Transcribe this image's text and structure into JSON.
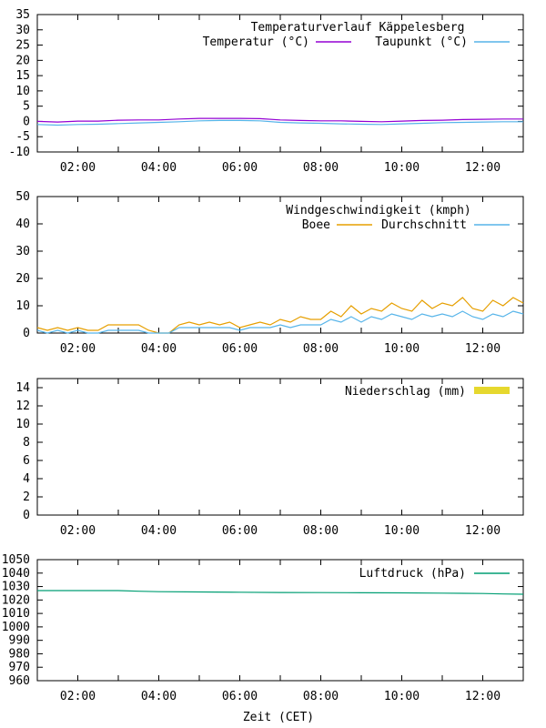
{
  "xlabel": "Zeit (CET)",
  "x_ticks": [
    "02:00",
    "04:00",
    "06:00",
    "08:00",
    "10:00",
    "12:00"
  ],
  "x_tick_hours": [
    2,
    4,
    6,
    8,
    10,
    12
  ],
  "x_range_hours": [
    1,
    13
  ],
  "colors": {
    "temperature": "#9400d3",
    "dewpoint": "#56b4e9",
    "gust": "#e69f00",
    "avg_wind": "#56b4e9",
    "precip": "#e6d82e",
    "pressure": "#009e73",
    "axis": "#000000"
  },
  "chart_data": [
    {
      "type": "line",
      "title": "Temperaturverlauf Käppelesberg",
      "ylim": [
        -10,
        35
      ],
      "yticks": [
        -10,
        -5,
        0,
        5,
        10,
        15,
        20,
        25,
        30,
        35
      ],
      "series": [
        {
          "name": "Temperatur (°C)",
          "color_key": "temperature",
          "x": [
            1,
            1.5,
            2,
            2.5,
            3,
            3.5,
            4,
            4.5,
            5,
            5.5,
            6,
            6.5,
            7,
            7.5,
            8,
            8.5,
            9,
            9.5,
            10,
            10.5,
            11,
            11.5,
            12,
            12.5,
            13
          ],
          "values": [
            0,
            -0.2,
            0.1,
            0.1,
            0.4,
            0.5,
            0.5,
            0.8,
            1.0,
            1.0,
            1.0,
            0.9,
            0.5,
            0.3,
            0.2,
            0.2,
            0.0,
            -0.1,
            0.1,
            0.3,
            0.4,
            0.6,
            0.7,
            0.8,
            0.8
          ]
        },
        {
          "name": "Taupunkt (°C)",
          "color_key": "dewpoint",
          "x": [
            1,
            1.5,
            2,
            2.5,
            3,
            3.5,
            4,
            4.5,
            5,
            5.5,
            6,
            6.5,
            7,
            7.5,
            8,
            8.5,
            9,
            9.5,
            10,
            10.5,
            11,
            11.5,
            12,
            12.5,
            13
          ],
          "values": [
            -1.0,
            -1.2,
            -1.0,
            -0.9,
            -0.7,
            -0.5,
            -0.3,
            -0.1,
            0.2,
            0.3,
            0.3,
            0.2,
            -0.3,
            -0.5,
            -0.6,
            -0.8,
            -0.9,
            -1.0,
            -0.8,
            -0.6,
            -0.4,
            -0.3,
            -0.2,
            -0.1,
            -0.1
          ]
        }
      ]
    },
    {
      "type": "line",
      "title": "Windgeschwindigkeit (kmph)",
      "ylim": [
        0,
        50
      ],
      "yticks": [
        0,
        10,
        20,
        30,
        40,
        50
      ],
      "series": [
        {
          "name": "Boee",
          "color_key": "gust",
          "x": [
            1.0,
            1.25,
            1.5,
            1.75,
            2.0,
            2.25,
            2.5,
            2.75,
            3.0,
            3.25,
            3.5,
            3.75,
            4.0,
            4.25,
            4.5,
            4.75,
            5.0,
            5.25,
            5.5,
            5.75,
            6.0,
            6.25,
            6.5,
            6.75,
            7.0,
            7.25,
            7.5,
            7.75,
            8.0,
            8.25,
            8.5,
            8.75,
            9.0,
            9.25,
            9.5,
            9.75,
            10.0,
            10.25,
            10.5,
            10.75,
            11.0,
            11.25,
            11.5,
            11.75,
            12.0,
            12.25,
            12.5,
            12.75,
            13.0
          ],
          "values": [
            2,
            1,
            2,
            1,
            2,
            1,
            1,
            3,
            3,
            3,
            3,
            1,
            0,
            0,
            3,
            4,
            3,
            4,
            3,
            4,
            2,
            3,
            4,
            3,
            5,
            4,
            6,
            5,
            5,
            8,
            6,
            10,
            7,
            9,
            8,
            11,
            9,
            8,
            12,
            9,
            11,
            10,
            13,
            9,
            8,
            12,
            10,
            13,
            11
          ]
        },
        {
          "name": "Durchschnitt",
          "color_key": "avg_wind",
          "x": [
            1.0,
            1.25,
            1.5,
            1.75,
            2.0,
            2.25,
            2.5,
            2.75,
            3.0,
            3.25,
            3.5,
            3.75,
            4.0,
            4.25,
            4.5,
            4.75,
            5.0,
            5.25,
            5.5,
            5.75,
            6.0,
            6.25,
            6.5,
            6.75,
            7.0,
            7.25,
            7.5,
            7.75,
            8.0,
            8.25,
            8.5,
            8.75,
            9.0,
            9.25,
            9.5,
            9.75,
            10.0,
            10.25,
            10.5,
            10.75,
            11.0,
            11.25,
            11.5,
            11.75,
            12.0,
            12.25,
            12.5,
            12.75,
            13.0
          ],
          "values": [
            1,
            0,
            1,
            0,
            1,
            0,
            0,
            1,
            1,
            1,
            1,
            0,
            0,
            0,
            2,
            2,
            2,
            2,
            2,
            2,
            1,
            2,
            2,
            2,
            3,
            2,
            3,
            3,
            3,
            5,
            4,
            6,
            4,
            6,
            5,
            7,
            6,
            5,
            7,
            6,
            7,
            6,
            8,
            6,
            5,
            7,
            6,
            8,
            7
          ]
        }
      ]
    },
    {
      "type": "bar",
      "title": "Niederschlag (mm)",
      "ylim": [
        0,
        15
      ],
      "yticks": [
        0,
        2,
        4,
        6,
        8,
        10,
        12,
        14
      ],
      "series": [
        {
          "name": "Niederschlag (mm)",
          "color_key": "precip",
          "x": [],
          "values": []
        }
      ]
    },
    {
      "type": "line",
      "title": "Luftdruck (hPa)",
      "ylim": [
        960,
        1050
      ],
      "yticks": [
        960,
        970,
        980,
        990,
        1000,
        1010,
        1020,
        1030,
        1040,
        1050
      ],
      "series": [
        {
          "name": "Luftdruck (hPa)",
          "color_key": "pressure",
          "x": [
            1,
            2,
            3,
            3.5,
            4,
            5,
            6,
            7,
            8,
            9,
            10,
            11,
            12,
            12.5,
            13
          ],
          "values": [
            1027,
            1027,
            1027,
            1026.5,
            1026.2,
            1026,
            1025.8,
            1025.6,
            1025.5,
            1025.4,
            1025.3,
            1025.1,
            1024.8,
            1024.5,
            1024.3
          ]
        }
      ]
    }
  ]
}
